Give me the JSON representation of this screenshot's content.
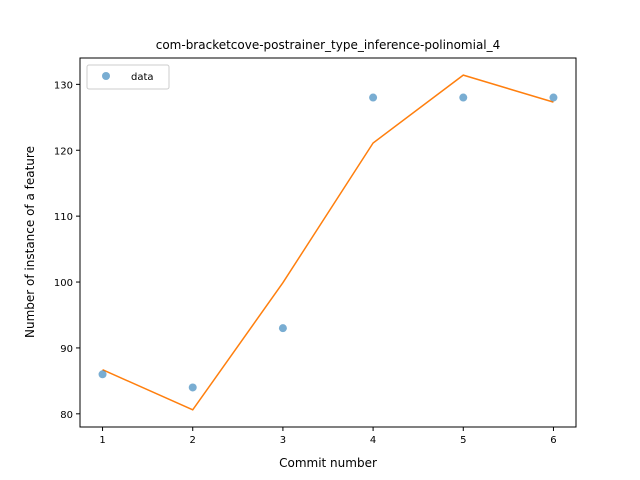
{
  "chart_data": {
    "type": "scatter",
    "title": "com-bracketcove-postrainer_type_inference-polinomial_4",
    "xlabel": "Commit number",
    "ylabel": "Number of instance of a feature",
    "xlim": [
      0.75,
      6.25
    ],
    "ylim": [
      78,
      134
    ],
    "xticks": [
      "1",
      "2",
      "3",
      "4",
      "5",
      "6"
    ],
    "yticks": [
      "80",
      "90",
      "100",
      "110",
      "120",
      "130"
    ],
    "grid": false,
    "legend_position": "top-left",
    "series": [
      {
        "name": "data",
        "kind": "scatter",
        "color": "#1f77b4",
        "x": [
          1,
          2,
          3,
          4,
          5,
          6
        ],
        "y": [
          86,
          84,
          93,
          128,
          128,
          128
        ]
      },
      {
        "kind": "line",
        "color": "#ff7f0e",
        "x": [
          1,
          2,
          3,
          4,
          5,
          6
        ],
        "y": [
          86.7,
          80.6,
          99.9,
          121.1,
          131.4,
          127.3
        ]
      }
    ]
  }
}
